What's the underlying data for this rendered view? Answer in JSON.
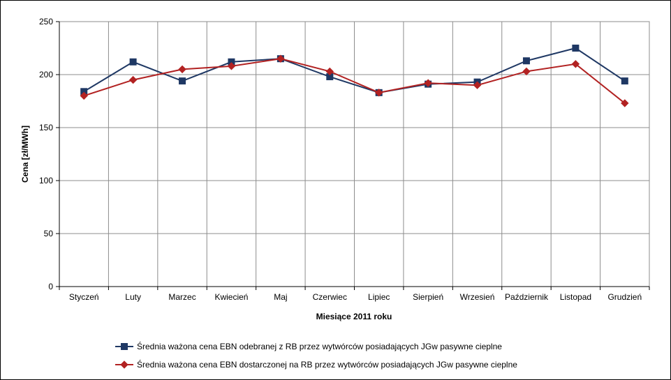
{
  "chart_data": {
    "type": "line",
    "title": "",
    "xlabel": "Miesiące 2011  roku",
    "ylabel": "Cena [zł/MWh]",
    "categories": [
      "Styczeń",
      "Luty",
      "Marzec",
      "Kwiecień",
      "Maj",
      "Czerwiec",
      "Lipiec",
      "Sierpień",
      "Wrzesień",
      "Październik",
      "Listopad",
      "Grudzień"
    ],
    "ylim": [
      0,
      250
    ],
    "yticks": [
      "0",
      "50",
      "100",
      "150",
      "200",
      "250"
    ],
    "grid": true,
    "legend_position": "bottom",
    "series": [
      {
        "name": "Średnia ważona cena EBN odebranej z RB przez wytwórców posiadających JGw pasywne cieplne",
        "color": "#1f3864",
        "marker": "square",
        "values": [
          184,
          212,
          194,
          212,
          215,
          198,
          183,
          191,
          193,
          213,
          225,
          194
        ]
      },
      {
        "name": "Średnia ważona cena EBN dostarczonej na RB przez wytwórców posiadających JGw pasywne cieplne",
        "color": "#b22222",
        "marker": "diamond",
        "values": [
          180,
          195,
          205,
          208,
          215,
          203,
          183,
          192,
          190,
          203,
          210,
          173
        ]
      }
    ]
  }
}
